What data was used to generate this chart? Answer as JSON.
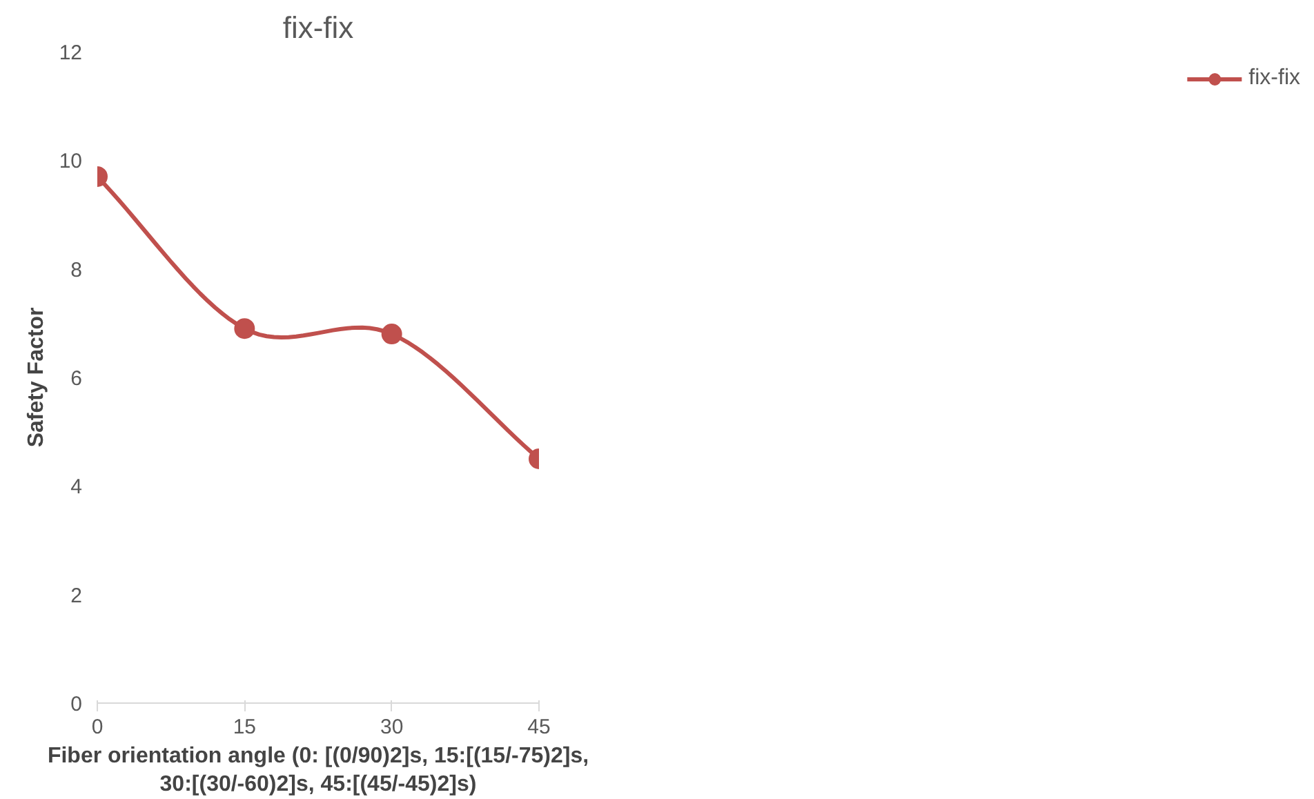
{
  "chart_data": {
    "type": "line",
    "title": "fix-fix",
    "xlabel": "Fiber orientation angle (0: [(0/90)2]s, 15:[(15/-75)2]s, 30:[(30/-60)2]s, 45:[(45/-45)2]s)",
    "ylabel": "Safety Factor",
    "categories": [
      "0",
      "15",
      "30",
      "45"
    ],
    "series": [
      {
        "name": "fix-fix",
        "color": "#c0504d",
        "values": [
          9.7,
          6.9,
          6.8,
          4.5
        ]
      }
    ],
    "ylim": [
      0,
      12
    ],
    "yticks": [
      0,
      2,
      4,
      6,
      8,
      10,
      12
    ],
    "grid": false,
    "legend": "right",
    "marker": "circle",
    "line_style": "solid"
  }
}
